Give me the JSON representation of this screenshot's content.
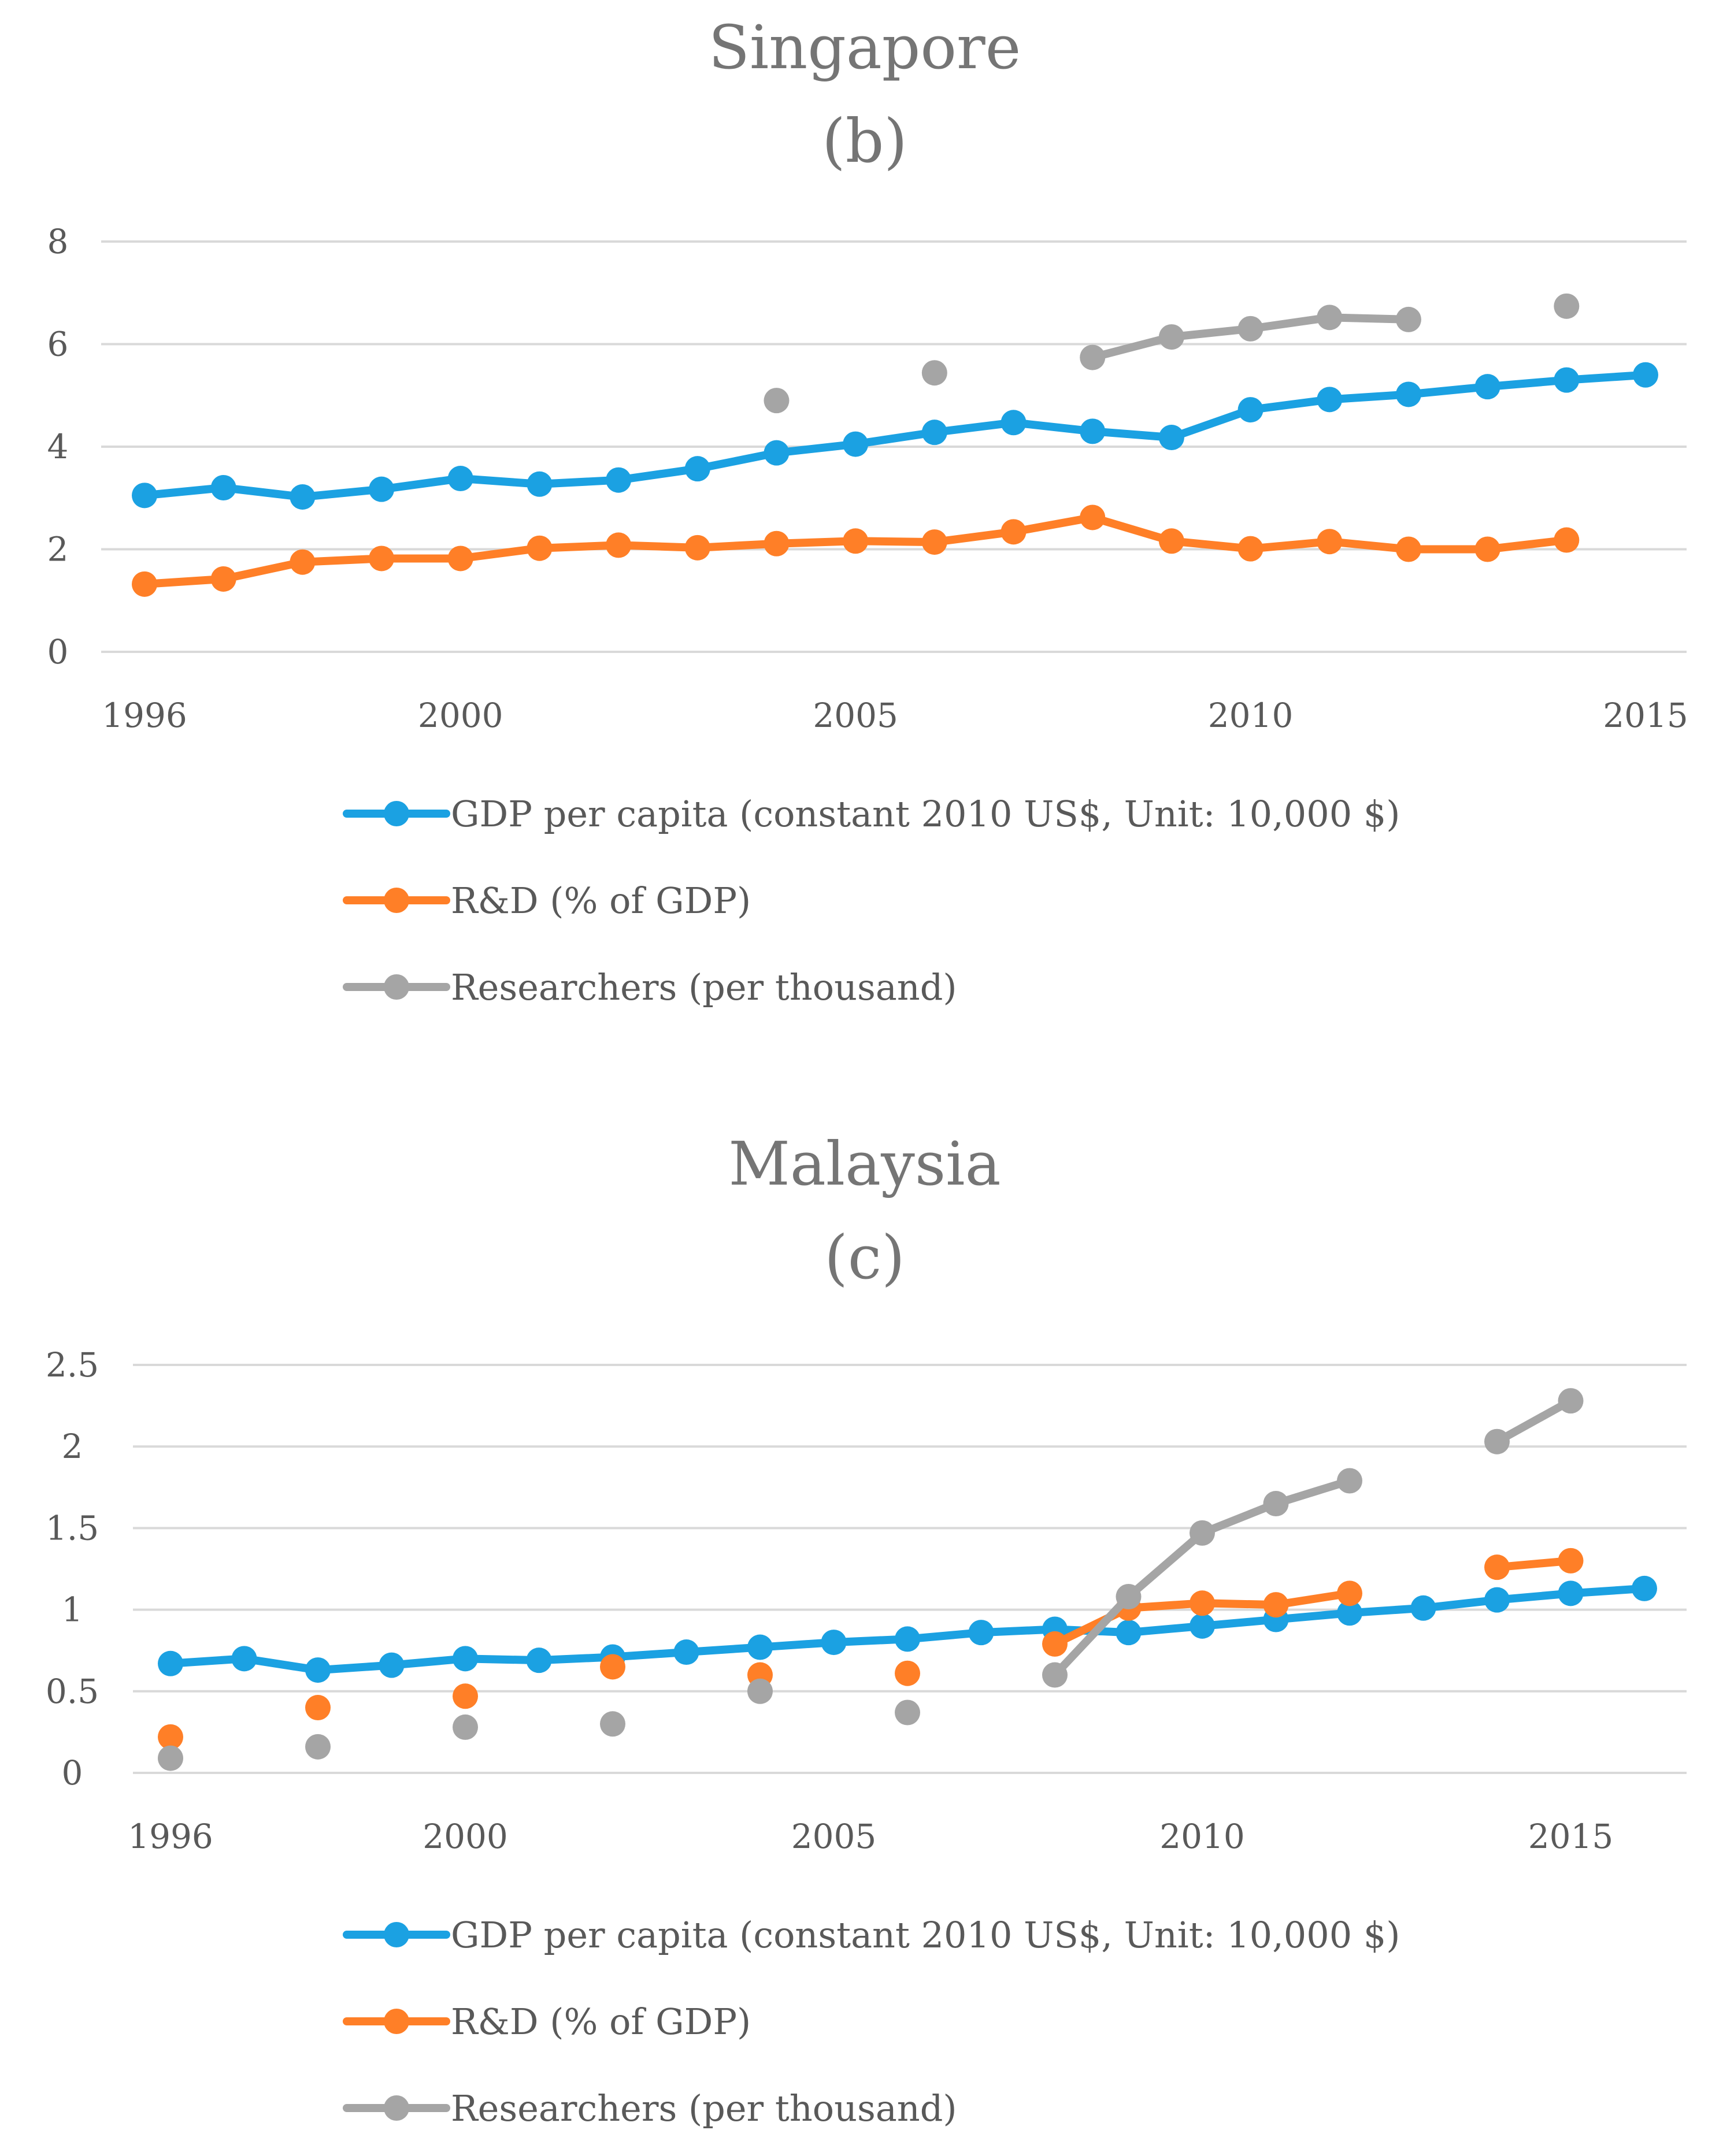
{
  "legend_labels": {
    "gdp": "GDP per capita (constant 2010 US$, Unit: 10,000 $)",
    "rd": "R&D (% of GDP)",
    "researchers": "Researchers (per thousand)"
  },
  "colors": {
    "gdp": "#1ba1e2",
    "rd": "#ff7f27",
    "researchers": "#a5a5a5"
  },
  "chart_data": [
    {
      "type": "line",
      "title": "Singapore",
      "subtitle": "(b)",
      "x": [
        1996,
        1997,
        1998,
        1999,
        2000,
        2001,
        2002,
        2003,
        2004,
        2005,
        2006,
        2007,
        2008,
        2009,
        2010,
        2011,
        2012,
        2013,
        2014,
        2015
      ],
      "x_tick_labels": [
        "1996",
        "2000",
        "2005",
        "2010",
        "2015"
      ],
      "y_tick_labels": [
        "0",
        "2",
        "4",
        "6",
        "8"
      ],
      "ylim": [
        0,
        8
      ],
      "series": [
        {
          "name": "GDP per capita (constant 2010 US$, Unit: 10,000 $)",
          "key": "gdp",
          "values": [
            3.05,
            3.2,
            3.02,
            3.17,
            3.38,
            3.27,
            3.35,
            3.57,
            3.88,
            4.05,
            4.28,
            4.47,
            4.3,
            4.18,
            4.72,
            4.92,
            5.02,
            5.17,
            5.3,
            5.4
          ]
        },
        {
          "name": "R&D (% of GDP)",
          "key": "rd",
          "values": [
            1.32,
            1.42,
            1.75,
            1.82,
            1.82,
            2.02,
            2.08,
            2.03,
            2.11,
            2.16,
            2.14,
            2.34,
            2.62,
            2.16,
            2.01,
            2.15,
            2.0,
            2.0,
            2.18,
            null
          ]
        },
        {
          "name": "Researchers (per thousand)",
          "key": "researchers",
          "values": [
            null,
            null,
            null,
            null,
            null,
            null,
            null,
            null,
            4.9,
            null,
            5.44,
            null,
            5.74,
            6.14,
            6.3,
            6.52,
            6.48,
            null,
            6.74,
            null
          ]
        }
      ]
    },
    {
      "type": "line",
      "title": "Malaysia",
      "subtitle": "(c)",
      "x": [
        1996,
        1997,
        1998,
        1999,
        2000,
        2001,
        2002,
        2003,
        2004,
        2005,
        2006,
        2007,
        2008,
        2009,
        2010,
        2011,
        2012,
        2013,
        2014,
        2015,
        2016
      ],
      "x_tick_labels": [
        "1996",
        "2000",
        "2005",
        "2010",
        "2015"
      ],
      "y_tick_labels": [
        "0",
        "0.5",
        "1",
        "1.5",
        "2",
        "2.5"
      ],
      "ylim": [
        0,
        2.5
      ],
      "series": [
        {
          "name": "GDP per capita (constant 2010 US$, Unit: 10,000 $)",
          "key": "gdp",
          "values": [
            0.67,
            0.7,
            0.63,
            0.66,
            0.7,
            0.69,
            0.71,
            0.74,
            0.77,
            0.8,
            0.82,
            0.86,
            0.88,
            0.86,
            0.9,
            0.94,
            0.98,
            1.01,
            1.06,
            1.1,
            1.13
          ]
        },
        {
          "name": "R&D (% of GDP)",
          "key": "rd",
          "values": [
            0.22,
            null,
            0.4,
            null,
            0.47,
            null,
            0.65,
            null,
            0.6,
            null,
            0.61,
            null,
            0.79,
            1.01,
            1.04,
            1.03,
            1.1,
            null,
            1.26,
            1.3,
            null
          ]
        },
        {
          "name": "Researchers (per thousand)",
          "key": "researchers",
          "values": [
            0.09,
            null,
            0.16,
            null,
            0.28,
            null,
            0.3,
            null,
            0.5,
            null,
            0.37,
            null,
            0.6,
            1.08,
            1.47,
            1.65,
            1.79,
            null,
            2.03,
            2.28,
            null
          ]
        }
      ]
    }
  ]
}
